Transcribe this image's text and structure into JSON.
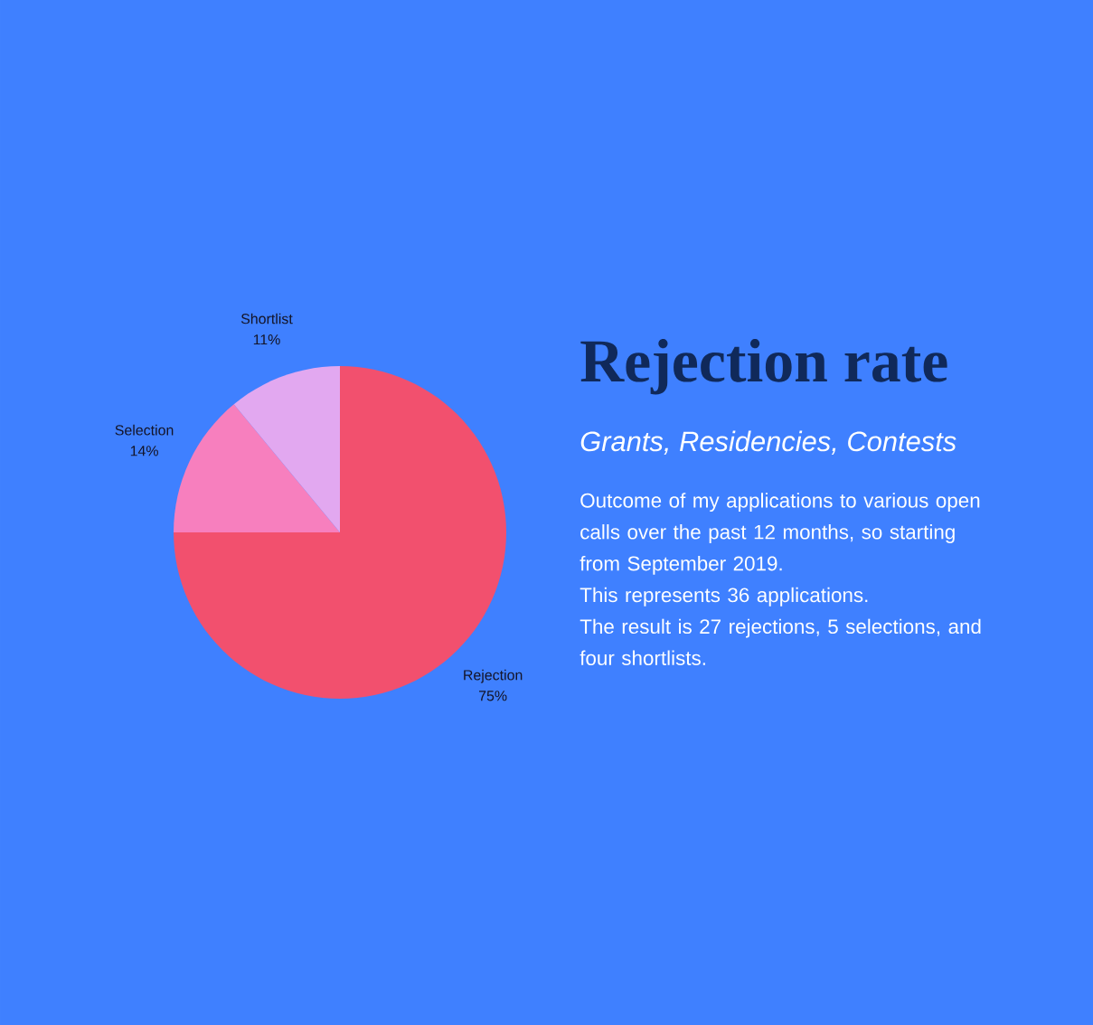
{
  "chart_data": {
    "type": "pie",
    "title": "Rejection rate",
    "subtitle": "Grants, Residencies, Contests",
    "annotations": [
      "Outcome of my applications to various open calls over the past 12 months, so starting from September 2019.",
      "This represents 36 applications.",
      "The result is 27 rejections, 5 selections, and four shortlists."
    ],
    "categories": [
      "Rejection",
      "Selection",
      "Shortlist"
    ],
    "values": [
      75,
      14,
      11
    ],
    "value_labels": [
      "75%",
      "14%",
      "11%"
    ],
    "colors": [
      "#f2506e",
      "#f77fbe",
      "#e2a8f0"
    ]
  }
}
